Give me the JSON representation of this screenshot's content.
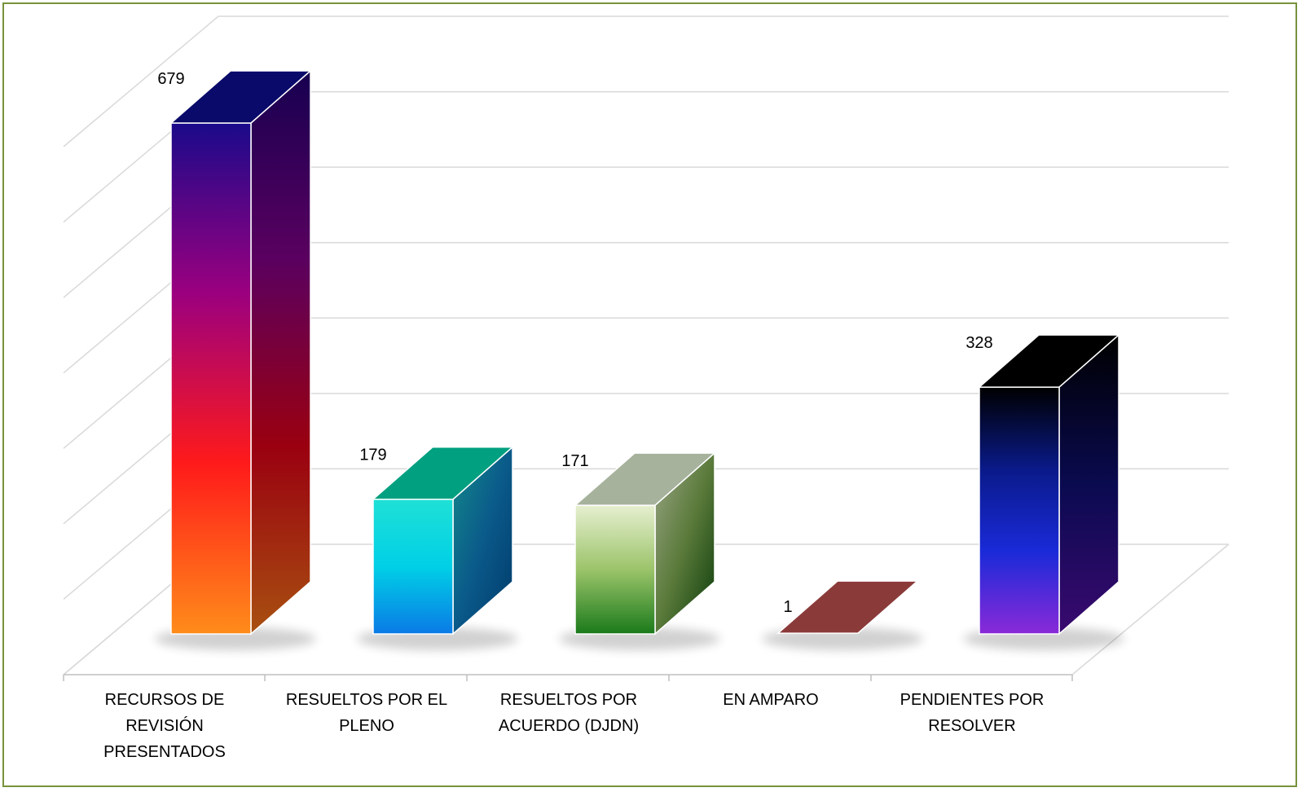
{
  "chart_data": {
    "type": "bar",
    "title": "",
    "xlabel": "",
    "ylabel": "",
    "grid": true,
    "legend": "none",
    "ylim": [
      0,
      700
    ],
    "categories": [
      "RECURSOS DE REVISIÓN PRESENTADOS",
      "RESUELTOS POR EL PLENO",
      "RESUELTOS POR ACUERDO (DJDN)",
      "EN AMPARO",
      "PENDIENTES POR RESOLVER"
    ],
    "category_lines": [
      [
        "RECURSOS DE",
        "REVISIÓN",
        "PRESENTADOS"
      ],
      [
        "RESUELTOS POR EL",
        "PLENO"
      ],
      [
        "RESUELTOS POR",
        "ACUERDO (DJDN)"
      ],
      [
        "EN AMPARO"
      ],
      [
        "PENDIENTES POR",
        "RESOLVER"
      ]
    ],
    "values": [
      679,
      179,
      171,
      1,
      328
    ],
    "data_labels": [
      "679",
      "179",
      "171",
      "1",
      "328"
    ],
    "colors": {
      "frame": "#77933c",
      "bar1": [
        "#1a0a8a",
        "#9b007f",
        "#ff1a1a",
        "#ff8c1a"
      ],
      "bar2": [
        "#1fe0d6",
        "#00d0e6",
        "#0a7ae6"
      ],
      "bar3": [
        "#e6efd0",
        "#9cc46a",
        "#1a7a1a"
      ],
      "bar4": [
        "#8b3a3a"
      ],
      "bar5": [
        "#000000",
        "#0a1a8a",
        "#1a2ad8",
        "#8a2ad8"
      ]
    }
  }
}
